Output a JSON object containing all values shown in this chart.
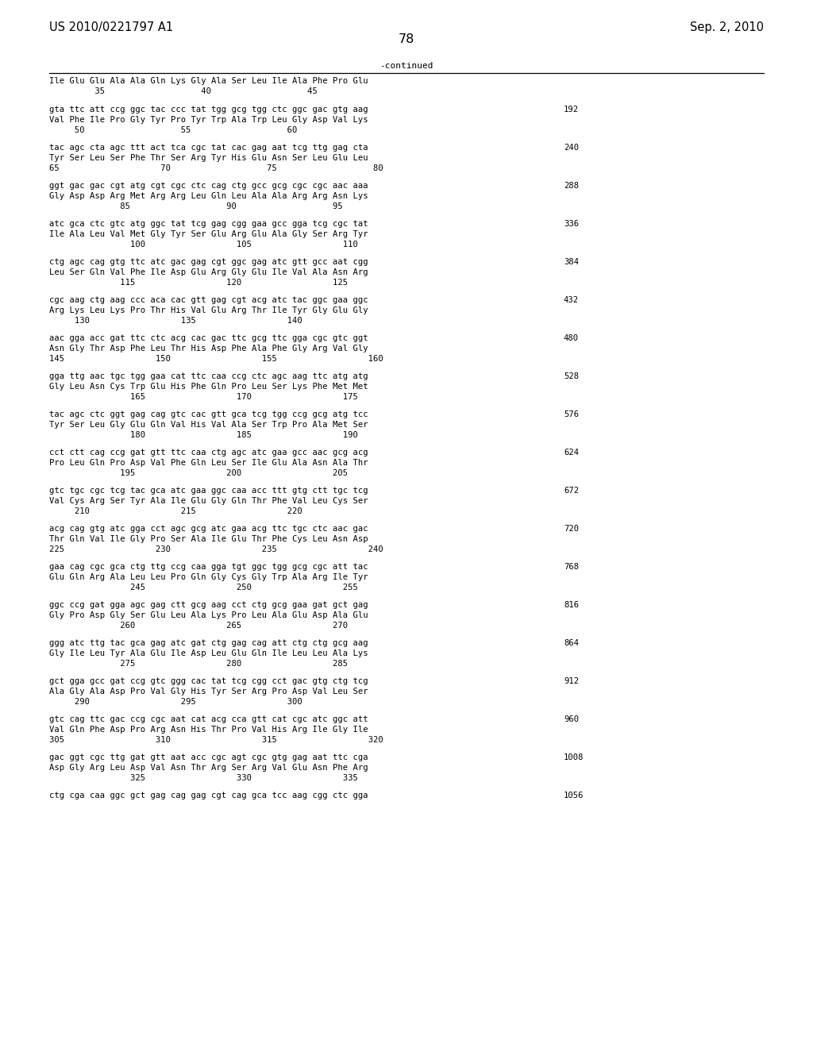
{
  "page_left": "US 2010/0221797 A1",
  "page_right": "Sep. 2, 2010",
  "page_number": "78",
  "continued_label": "-continued",
  "background_color": "#ffffff",
  "text_color": "#000000",
  "font_size_header": 10.5,
  "font_size_body": 8.0,
  "lines": [
    {
      "type": "header_aa",
      "text": "Ile Glu Glu Ala Ala Gln Lys Gly Ala Ser Leu Ile Ala Phe Pro Glu"
    },
    {
      "type": "header_num",
      "text": "         35                   40                   45"
    },
    {
      "type": "blank"
    },
    {
      "type": "dna",
      "text": "gta ttc att ccg ggc tac ccc tat tgg gcg tgg ctc ggc gac gtg aag",
      "num": "192"
    },
    {
      "type": "aa",
      "text": "Val Phe Ile Pro Gly Tyr Pro Tyr Trp Ala Trp Leu Gly Asp Val Lys"
    },
    {
      "type": "num",
      "text": "     50                   55                   60"
    },
    {
      "type": "blank"
    },
    {
      "type": "dna",
      "text": "tac agc cta agc ttt act tca cgc tat cac gag aat tcg ttg gag cta",
      "num": "240"
    },
    {
      "type": "aa",
      "text": "Tyr Ser Leu Ser Phe Thr Ser Arg Tyr His Glu Asn Ser Leu Glu Leu"
    },
    {
      "type": "num",
      "text": "65                    70                   75                   80"
    },
    {
      "type": "blank"
    },
    {
      "type": "dna",
      "text": "ggt gac gac cgt atg cgt cgc ctc cag ctg gcc gcg cgc cgc aac aaa",
      "num": "288"
    },
    {
      "type": "aa",
      "text": "Gly Asp Asp Arg Met Arg Arg Leu Gln Leu Ala Ala Arg Arg Asn Lys"
    },
    {
      "type": "num",
      "text": "              85                   90                   95"
    },
    {
      "type": "blank"
    },
    {
      "type": "dna",
      "text": "atc gca ctc gtc atg ggc tat tcg gag cgg gaa gcc gga tcg cgc tat",
      "num": "336"
    },
    {
      "type": "aa",
      "text": "Ile Ala Leu Val Met Gly Tyr Ser Glu Arg Glu Ala Gly Ser Arg Tyr"
    },
    {
      "type": "num",
      "text": "                100                  105                  110"
    },
    {
      "type": "blank"
    },
    {
      "type": "dna",
      "text": "ctg agc cag gtg ttc atc gac gag cgt ggc gag atc gtt gcc aat cgg",
      "num": "384"
    },
    {
      "type": "aa",
      "text": "Leu Ser Gln Val Phe Ile Asp Glu Arg Gly Glu Ile Val Ala Asn Arg"
    },
    {
      "type": "num",
      "text": "              115                  120                  125"
    },
    {
      "type": "blank"
    },
    {
      "type": "dna",
      "text": "cgc aag ctg aag ccc aca cac gtt gag cgt acg atc tac ggc gaa ggc",
      "num": "432"
    },
    {
      "type": "aa",
      "text": "Arg Lys Leu Lys Pro Thr His Val Glu Arg Thr Ile Tyr Gly Glu Gly"
    },
    {
      "type": "num",
      "text": "     130                  135                  140"
    },
    {
      "type": "blank"
    },
    {
      "type": "dna",
      "text": "aac gga acc gat ttc ctc acg cac gac ttc gcg ttc gga cgc gtc ggt",
      "num": "480"
    },
    {
      "type": "aa",
      "text": "Asn Gly Thr Asp Phe Leu Thr His Asp Phe Ala Phe Gly Arg Val Gly"
    },
    {
      "type": "num",
      "text": "145                  150                  155                  160"
    },
    {
      "type": "blank"
    },
    {
      "type": "dna",
      "text": "gga ttg aac tgc tgg gaa cat ttc caa ccg ctc agc aag ttc atg atg",
      "num": "528"
    },
    {
      "type": "aa",
      "text": "Gly Leu Asn Cys Trp Glu His Phe Gln Pro Leu Ser Lys Phe Met Met"
    },
    {
      "type": "num",
      "text": "                165                  170                  175"
    },
    {
      "type": "blank"
    },
    {
      "type": "dna",
      "text": "tac agc ctc ggt gag cag gtc cac gtt gca tcg tgg ccg gcg atg tcc",
      "num": "576"
    },
    {
      "type": "aa",
      "text": "Tyr Ser Leu Gly Glu Gln Val His Val Ala Ser Trp Pro Ala Met Ser"
    },
    {
      "type": "num",
      "text": "                180                  185                  190"
    },
    {
      "type": "blank"
    },
    {
      "type": "dna",
      "text": "cct ctt cag ccg gat gtt ttc caa ctg agc atc gaa gcc aac gcg acg",
      "num": "624"
    },
    {
      "type": "aa",
      "text": "Pro Leu Gln Pro Asp Val Phe Gln Leu Ser Ile Glu Ala Asn Ala Thr"
    },
    {
      "type": "num",
      "text": "              195                  200                  205"
    },
    {
      "type": "blank"
    },
    {
      "type": "dna",
      "text": "gtc tgc cgc tcg tac gca atc gaa ggc caa acc ttt gtg ctt tgc tcg",
      "num": "672"
    },
    {
      "type": "aa",
      "text": "Val Cys Arg Ser Tyr Ala Ile Glu Gly Gln Thr Phe Val Leu Cys Ser"
    },
    {
      "type": "num",
      "text": "     210                  215                  220"
    },
    {
      "type": "blank"
    },
    {
      "type": "dna",
      "text": "acg cag gtg atc gga cct agc gcg atc gaa acg ttc tgc ctc aac gac",
      "num": "720"
    },
    {
      "type": "aa",
      "text": "Thr Gln Val Ile Gly Pro Ser Ala Ile Glu Thr Phe Cys Leu Asn Asp"
    },
    {
      "type": "num",
      "text": "225                  230                  235                  240"
    },
    {
      "type": "blank"
    },
    {
      "type": "dna",
      "text": "gaa cag cgc gca ctg ttg ccg caa gga tgt ggc tgg gcg cgc att tac",
      "num": "768"
    },
    {
      "type": "aa",
      "text": "Glu Gln Arg Ala Leu Leu Pro Gln Gly Cys Gly Trp Ala Arg Ile Tyr"
    },
    {
      "type": "num",
      "text": "                245                  250                  255"
    },
    {
      "type": "blank"
    },
    {
      "type": "dna",
      "text": "ggc ccg gat gga agc gag ctt gcg aag cct ctg gcg gaa gat gct gag",
      "num": "816"
    },
    {
      "type": "aa",
      "text": "Gly Pro Asp Gly Ser Glu Leu Ala Lys Pro Leu Ala Glu Asp Ala Glu"
    },
    {
      "type": "num",
      "text": "              260                  265                  270"
    },
    {
      "type": "blank"
    },
    {
      "type": "dna",
      "text": "ggg atc ttg tac gca gag atc gat ctg gag cag att ctg ctg gcg aag",
      "num": "864"
    },
    {
      "type": "aa",
      "text": "Gly Ile Leu Tyr Ala Glu Ile Asp Leu Glu Gln Ile Leu Leu Ala Lys"
    },
    {
      "type": "num",
      "text": "              275                  280                  285"
    },
    {
      "type": "blank"
    },
    {
      "type": "dna",
      "text": "gct gga gcc gat ccg gtc ggg cac tat tcg cgg cct gac gtg ctg tcg",
      "num": "912"
    },
    {
      "type": "aa",
      "text": "Ala Gly Ala Asp Pro Val Gly His Tyr Ser Arg Pro Asp Val Leu Ser"
    },
    {
      "type": "num",
      "text": "     290                  295                  300"
    },
    {
      "type": "blank"
    },
    {
      "type": "dna",
      "text": "gtc cag ttc gac ccg cgc aat cat acg cca gtt cat cgc atc ggc att",
      "num": "960"
    },
    {
      "type": "aa",
      "text": "Val Gln Phe Asp Pro Arg Asn His Thr Pro Val His Arg Ile Gly Ile"
    },
    {
      "type": "num",
      "text": "305                  310                  315                  320"
    },
    {
      "type": "blank"
    },
    {
      "type": "dna",
      "text": "gac ggt cgc ttg gat gtt aat acc cgc agt cgc gtg gag aat ttc cga",
      "num": "1008"
    },
    {
      "type": "aa",
      "text": "Asp Gly Arg Leu Asp Val Asn Thr Arg Ser Arg Val Glu Asn Phe Arg"
    },
    {
      "type": "num",
      "text": "                325                  330                  335"
    },
    {
      "type": "blank"
    },
    {
      "type": "dna",
      "text": "ctg cga caa ggc gct gag cag gag cgt cag gca tcc aag cgg ctc gga",
      "num": "1056"
    }
  ]
}
